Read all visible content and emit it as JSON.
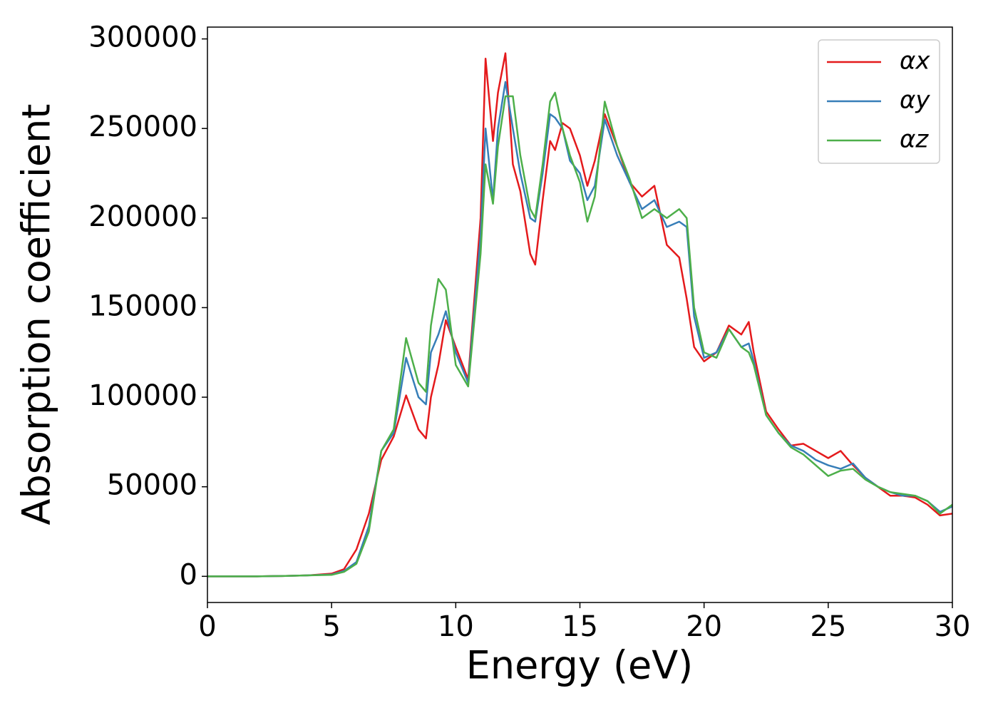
{
  "chart_data": {
    "type": "line",
    "x_label": "Energy (eV)",
    "y_label": "Absorption coefficient",
    "x": [
      0,
      1,
      2,
      3,
      4,
      5,
      5.5,
      6,
      6.5,
      7,
      7.5,
      8,
      8.5,
      8.8,
      9,
      9.3,
      9.6,
      10,
      10.5,
      11,
      11.2,
      11.5,
      11.7,
      12,
      12.3,
      12.6,
      13,
      13.2,
      13.5,
      13.8,
      14,
      14.3,
      14.6,
      15,
      15.3,
      15.6,
      16,
      16.5,
      17,
      17.5,
      18,
      18.5,
      19,
      19.3,
      19.6,
      20,
      20.5,
      21,
      21.5,
      21.8,
      22,
      22.5,
      23,
      23.5,
      24,
      24.5,
      25,
      25.5,
      26,
      26.5,
      27,
      27.5,
      28,
      28.5,
      29,
      29.5,
      30
    ],
    "series": [
      {
        "name": "αx",
        "color": "#e41a1c",
        "values": [
          0,
          0,
          0,
          200,
          500,
          1500,
          4000,
          15000,
          35000,
          65000,
          78000,
          101000,
          82000,
          77000,
          100000,
          118000,
          143000,
          128000,
          110000,
          200000,
          289000,
          243000,
          270000,
          292000,
          230000,
          215000,
          180000,
          174000,
          210000,
          243000,
          238000,
          253000,
          250000,
          235000,
          218000,
          232000,
          258000,
          240000,
          220000,
          212000,
          218000,
          185000,
          178000,
          155000,
          128000,
          120000,
          125000,
          140000,
          135000,
          142000,
          125000,
          92000,
          82000,
          73000,
          74000,
          70000,
          66000,
          70000,
          62000,
          55000,
          50000,
          45000,
          45000,
          44000,
          40000,
          34000,
          35000
        ]
      },
      {
        "name": "αy",
        "color": "#377eb8",
        "values": [
          0,
          0,
          0,
          200,
          500,
          1000,
          3000,
          8000,
          28000,
          70000,
          80000,
          122000,
          100000,
          96000,
          125000,
          135000,
          148000,
          125000,
          108000,
          190000,
          250000,
          210000,
          250000,
          276000,
          250000,
          225000,
          200000,
          198000,
          225000,
          258000,
          256000,
          250000,
          232000,
          225000,
          210000,
          218000,
          255000,
          235000,
          220000,
          205000,
          210000,
          195000,
          198000,
          195000,
          145000,
          122000,
          125000,
          138000,
          128000,
          130000,
          120000,
          90000,
          80000,
          73000,
          70000,
          65000,
          62000,
          60000,
          63000,
          55000,
          50000,
          47000,
          45000,
          45000,
          42000,
          36000,
          39000
        ]
      },
      {
        "name": "αz",
        "color": "#4daf4a",
        "values": [
          0,
          0,
          0,
          200,
          500,
          800,
          2500,
          7000,
          25000,
          70000,
          82000,
          133000,
          108000,
          103000,
          140000,
          166000,
          160000,
          118000,
          106000,
          180000,
          230000,
          208000,
          240000,
          268000,
          268000,
          235000,
          205000,
          200000,
          230000,
          265000,
          270000,
          250000,
          235000,
          220000,
          198000,
          212000,
          265000,
          240000,
          222000,
          200000,
          205000,
          200000,
          205000,
          200000,
          150000,
          125000,
          122000,
          138000,
          128000,
          125000,
          118000,
          90000,
          80000,
          72000,
          68000,
          62000,
          56000,
          59000,
          60000,
          54000,
          50000,
          47000,
          46000,
          45000,
          42000,
          35000,
          40000
        ]
      }
    ],
    "xlim": [
      0,
      30
    ],
    "xticks": [
      0,
      5,
      10,
      15,
      20,
      25,
      30
    ],
    "ylim": [
      -14600,
      306600
    ],
    "yticks": [
      0,
      50000,
      100000,
      150000,
      200000,
      250000,
      300000
    ],
    "legend": "upper right"
  }
}
